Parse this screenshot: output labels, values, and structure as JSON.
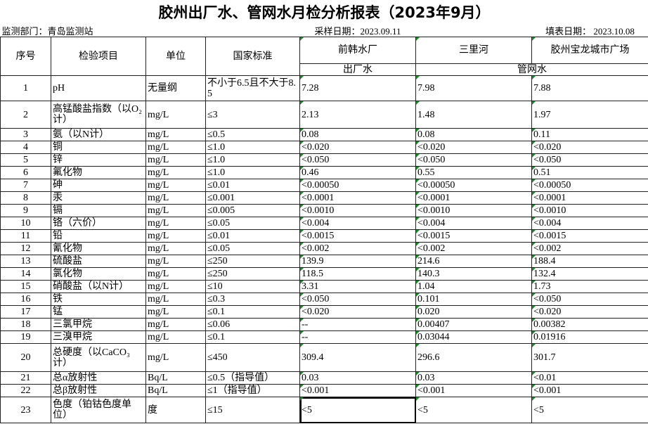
{
  "title": "胶州出厂水、管网水月检分析报表（2023年9月）",
  "info": {
    "department": "监测部门：青岛监测站",
    "sampling_date": "采样日期：2023.09.11",
    "fill_date": "填表日期： 2023.10.08"
  },
  "header": {
    "index": "序号",
    "item": "检验项目",
    "unit": "单位",
    "standard": "国家标准",
    "sites": [
      "前韩水厂",
      "三里河",
      "胶州宝龙城市广场"
    ],
    "types": [
      "出厂水",
      "管网水"
    ]
  },
  "rows": [
    [
      "1",
      "pH",
      "无量纲",
      "不小于6.5且不大于8.5",
      "7.28",
      "7.98",
      "7.88"
    ],
    [
      "2",
      "高锰酸盐指数（以O₂计）",
      "mg/L",
      "≤3",
      "2.13",
      "1.48",
      "1.97"
    ],
    [
      "3",
      "氨（以N计）",
      "mg/L",
      "≤0.5",
      "0.08",
      "0.08",
      "0.11"
    ],
    [
      "4",
      "铜",
      "mg/L",
      "≤1.0",
      "<0.020",
      "<0.020",
      "<0.020"
    ],
    [
      "5",
      "锌",
      "mg/L",
      "≤1.0",
      "<0.050",
      "<0.050",
      "<0.050"
    ],
    [
      "6",
      "氟化物",
      "mg/L",
      "≤1.0",
      "0.46",
      "0.55",
      "0.51"
    ],
    [
      "7",
      "砷",
      "mg/L",
      "≤0.01",
      "<0.00050",
      "<0.00050",
      "<0.00050"
    ],
    [
      "8",
      "汞",
      "mg/L",
      "≤0.001",
      "<0.0001",
      "<0.0001",
      "<0.0001"
    ],
    [
      "9",
      "镉",
      "mg/L",
      "≤0.005",
      "<0.0010",
      "<0.0010",
      "<0.0010"
    ],
    [
      "10",
      "铬（六价）",
      "mg/L",
      "≤0.05",
      "<0.004",
      "<0.004",
      "<0.004"
    ],
    [
      "11",
      "铅",
      "mg/L",
      "≤0.01",
      "<0.0015",
      "<0.0015",
      "<0.0015"
    ],
    [
      "12",
      "氰化物",
      "mg/L",
      "≤0.05",
      "<0.002",
      "<0.002",
      "<0.002"
    ],
    [
      "13",
      "硫酸盐",
      "mg/L",
      "≤250",
      "139.9",
      "214.6",
      "188.4"
    ],
    [
      "14",
      "氯化物",
      "mg/L",
      "≤250",
      "118.5",
      "140.3",
      "132.4"
    ],
    [
      "15",
      "硝酸盐（以N计）",
      "mg/L",
      "≤10",
      "3.31",
      "1.04",
      "1.73"
    ],
    [
      "16",
      "铁",
      "mg/L",
      "≤0.3",
      "<0.050",
      "0.101",
      "<0.050"
    ],
    [
      "17",
      "锰",
      "mg/L",
      "≤0.1",
      "<0.020",
      "0.020",
      "<0.020"
    ],
    [
      "18",
      "三氯甲烷",
      "mg/L",
      "≤0.06",
      "--",
      "0.00407",
      "0.00382"
    ],
    [
      "19",
      "三溴甲烷",
      "mg/L",
      "≤0.1",
      "--",
      "0.03044",
      "0.01916"
    ],
    [
      "20",
      "总硬度（以CaCO₃计）",
      "mg/L",
      "≤450",
      "309.4",
      "296.6",
      "301.7"
    ],
    [
      "21",
      "总α放射性",
      "Bq/L",
      "≤0.5（指导值）",
      "0.03",
      "0.03",
      "<0.01"
    ],
    [
      "22",
      "总β放射性",
      "Bq/L",
      "≤1（指导值）",
      "<0.001",
      "<0.001",
      "<0.001"
    ],
    [
      "23",
      "色度（铂钴色度单位）",
      "度",
      "≤15",
      "<5",
      "<5",
      "<5"
    ]
  ]
}
